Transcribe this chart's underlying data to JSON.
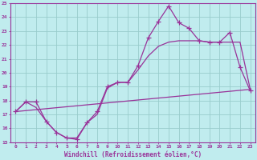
{
  "xlabel": "Windchill (Refroidissement éolien,°C)",
  "xlim": [
    0,
    23
  ],
  "ylim": [
    15,
    25
  ],
  "bg_color": "#c0ecee",
  "line_color": "#993399",
  "grid_color": "#99cccc",
  "curve1_x": [
    0,
    1,
    2,
    3,
    4,
    5,
    6,
    7,
    8,
    9,
    10,
    11,
    12,
    13,
    14,
    15,
    16,
    17,
    18,
    19,
    20,
    21,
    22,
    23
  ],
  "curve1_y": [
    17.2,
    17.9,
    17.9,
    16.5,
    15.7,
    15.3,
    15.2,
    16.4,
    17.2,
    19.0,
    19.3,
    19.3,
    20.5,
    22.5,
    23.7,
    24.8,
    23.6,
    23.2,
    22.3,
    22.2,
    22.2,
    22.9,
    20.4,
    18.7
  ],
  "curve2_x": [
    0,
    1,
    2,
    3,
    4,
    5,
    6,
    7,
    8,
    9,
    10,
    11,
    12,
    13,
    14,
    15,
    16,
    17,
    18,
    19,
    20,
    21,
    22,
    23
  ],
  "curve2_y": [
    17.2,
    17.9,
    17.5,
    16.5,
    15.7,
    15.3,
    15.3,
    16.4,
    17.0,
    18.9,
    19.3,
    19.3,
    20.2,
    21.2,
    21.9,
    22.2,
    22.3,
    22.3,
    22.3,
    22.2,
    22.2,
    22.2,
    22.2,
    18.8
  ],
  "refline_x": [
    0,
    23
  ],
  "refline_y": [
    17.2,
    18.8
  ],
  "marker_style": "+",
  "marker_size": 4,
  "line_width": 0.9
}
